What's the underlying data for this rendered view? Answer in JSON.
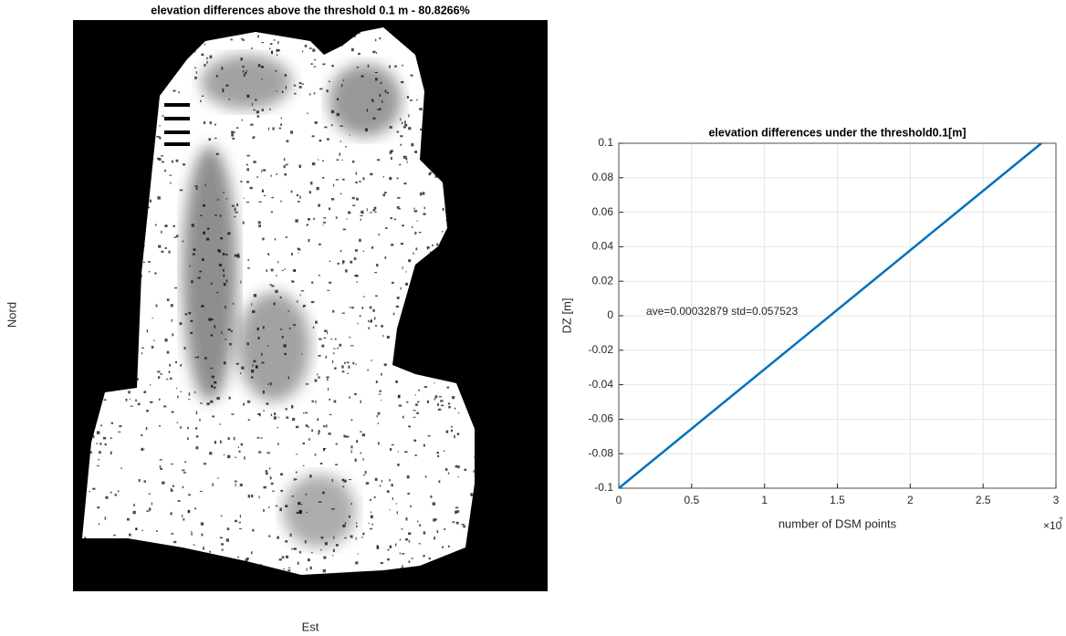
{
  "chart_data": [
    {
      "type": "image",
      "title": "elevation differences above the threshold 0.1 m - 80.8266%",
      "xlabel": "Est",
      "ylabel": "Nord"
    },
    {
      "type": "line",
      "title": "elevation differences under the threshold0.1[m]",
      "xlabel": "number of DSM points",
      "ylabel": "DZ [m]",
      "x_multiplier": "×10",
      "x_multiplier_exponent": "7",
      "annotation": "ave=0.00032879  std=0.057523",
      "series": [
        {
          "color": "#0072bd",
          "x": [
            0,
            29000000
          ],
          "values": [
            -0.1,
            0.1
          ]
        }
      ],
      "xlim": [
        0,
        30000000
      ],
      "ylim": [
        -0.1,
        0.1
      ],
      "xticks": [
        0,
        {
          "value": 5000000,
          "label": "0.5"
        },
        {
          "value": 10000000,
          "label": "1"
        },
        {
          "value": 15000000,
          "label": "1.5"
        },
        {
          "value": 20000000,
          "label": "2"
        },
        {
          "value": 25000000,
          "label": "2.5"
        },
        {
          "value": 30000000,
          "label": "3"
        }
      ],
      "yticks": [
        -0.1,
        -0.08,
        -0.06,
        -0.04,
        -0.02,
        0,
        0.02,
        0.04,
        0.06,
        0.08,
        0.1
      ],
      "grid": true
    }
  ]
}
